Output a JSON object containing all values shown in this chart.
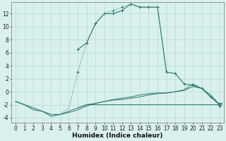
{
  "bg_color": "#daf0ed",
  "line_color": "#2a7a70",
  "xlabel": "Humidex (Indice chaleur)",
  "xlabel_fontsize": 6.5,
  "ylabel_vals": [
    -4,
    -2,
    0,
    2,
    4,
    6,
    8,
    10,
    12
  ],
  "xlim": [
    -0.5,
    23.5
  ],
  "ylim": [
    -4.8,
    13.8
  ],
  "tick_fontsize": 5.5,
  "dotted_x": [
    0,
    1,
    2,
    3,
    4,
    5,
    6,
    7,
    8,
    9,
    10,
    11,
    12,
    13,
    14,
    15,
    16,
    17
  ],
  "dotted_y": [
    -1.5,
    -2.0,
    -2.5,
    -3.0,
    -3.5,
    -3.5,
    -2.5,
    3.0,
    7.5,
    10.5,
    12.0,
    12.5,
    13.0,
    13.5,
    13.0,
    13.0,
    13.0,
    3.0
  ],
  "solid_x": [
    7,
    8,
    9,
    10,
    11,
    12,
    13,
    14,
    15,
    16,
    17,
    18,
    19,
    20,
    21,
    22,
    23
  ],
  "solid_y": [
    6.5,
    7.5,
    10.5,
    12.0,
    12.0,
    12.5,
    13.5,
    13.0,
    13.0,
    13.0,
    3.0,
    2.8,
    1.2,
    1.0,
    0.5,
    -0.8,
    -2.0
  ],
  "flat1_x": [
    0,
    1,
    2,
    3,
    4,
    5,
    6,
    7,
    8,
    9,
    10,
    11,
    12,
    13,
    14,
    15,
    16,
    17,
    18,
    19,
    20,
    21,
    22,
    23
  ],
  "flat1_y": [
    -1.5,
    -2.0,
    -2.5,
    -3.0,
    -3.5,
    -3.5,
    -3.0,
    -2.5,
    -2.0,
    -2.0,
    -2.0,
    -2.0,
    -2.0,
    -2.0,
    -2.0,
    -2.0,
    -2.0,
    -2.0,
    -2.0,
    -2.0,
    -2.0,
    -2.0,
    -2.0,
    -2.0
  ],
  "flat2_x": [
    0,
    1,
    2,
    3,
    4,
    5,
    6,
    7,
    8,
    9,
    10,
    11,
    12,
    13,
    14,
    15,
    16,
    17,
    18,
    19,
    20,
    21,
    22,
    23
  ],
  "flat2_y": [
    -1.5,
    -2.0,
    -2.8,
    -3.0,
    -3.8,
    -3.5,
    -3.2,
    -2.8,
    -2.2,
    -1.8,
    -1.5,
    -1.2,
    -1.0,
    -0.8,
    -0.5,
    -0.3,
    -0.2,
    -0.2,
    -0.0,
    0.3,
    1.2,
    0.5,
    -0.8,
    -2.0
  ],
  "flat3_x": [
    7,
    8,
    9,
    10,
    11,
    12,
    13,
    14,
    15,
    16,
    17,
    18,
    19,
    20,
    21,
    22,
    23
  ],
  "flat3_y": [
    -2.5,
    -2.0,
    -1.8,
    -1.5,
    -1.3,
    -1.2,
    -1.0,
    -0.8,
    -0.5,
    -0.3,
    -0.2,
    -0.0,
    0.2,
    0.8,
    0.5,
    -0.5,
    -2.0
  ],
  "triangle_x": [
    23
  ],
  "triangle_y": [
    -2.0
  ]
}
